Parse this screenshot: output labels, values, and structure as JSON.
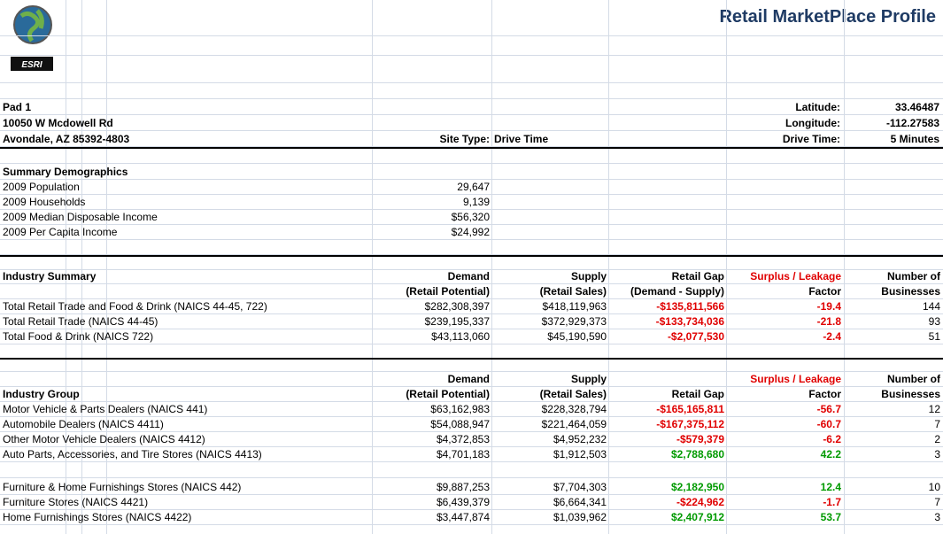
{
  "title": "Retail MarketPlace Profile",
  "logo_text": "ESRI",
  "site": {
    "name": "Pad 1",
    "address": "10050 W Mcdowell Rd",
    "city": "Avondale, AZ 85392-4803",
    "site_type_label": "Site Type:",
    "site_type": "Drive Time",
    "latitude_label": "Latitude:",
    "latitude": 33.46487,
    "longitude_label": "Longitude:",
    "longitude": -112.27583,
    "drive_time_label": "Drive Time:",
    "drive_time": "5 Minutes"
  },
  "summary_demographics": {
    "title": "Summary Demographics",
    "rows": [
      [
        "2009 Population",
        "29,647"
      ],
      [
        "2009 Households",
        "9,139"
      ],
      [
        "2009 Median Disposable Income",
        "$56,320"
      ],
      [
        "2009 Per Capita Income",
        "$24,992"
      ]
    ]
  },
  "industry_summary": {
    "title": "Industry Summary",
    "headers": [
      [
        "Demand",
        "(Retail Potential)"
      ],
      [
        "Supply",
        "(Retail Sales)"
      ],
      [
        "Retail Gap",
        "(Demand - Supply)"
      ],
      [
        "Surplus / Leakage",
        "Factor"
      ],
      [
        "Number of",
        "Businesses"
      ]
    ],
    "rows": [
      [
        "Total Retail Trade and Food & Drink (NAICS 44-45, 722)",
        "$282,308,397",
        "$418,119,963",
        "-$135,811,566",
        -19.4,
        144
      ],
      [
        "Total Retail Trade (NAICS 44-45)",
        "$239,195,337",
        "$372,929,373",
        "-$133,734,036",
        -21.8,
        93
      ],
      [
        "Total Food & Drink (NAICS 722)",
        "$43,113,060",
        "$45,190,590",
        "-$2,077,530",
        -2.4,
        51
      ]
    ]
  },
  "industry_group": {
    "title": "Industry Group",
    "headers": [
      [
        "Demand",
        "(Retail Potential)"
      ],
      [
        "Supply",
        "(Retail Sales)"
      ],
      [
        "Retail Gap"
      ],
      [
        "Surplus / Leakage",
        "Factor"
      ],
      [
        "Number of",
        "Businesses"
      ]
    ],
    "groups": [
      [
        [
          "Motor Vehicle & Parts Dealers (NAICS 441)",
          "$63,162,983",
          "$228,328,794",
          "-$165,165,811",
          -56.7,
          12
        ],
        [
          "Automobile Dealers (NAICS 4411)",
          "$54,088,947",
          "$221,464,059",
          "-$167,375,112",
          -60.7,
          7
        ],
        [
          "Other Motor Vehicle Dealers (NAICS 4412)",
          "$4,372,853",
          "$4,952,232",
          "-$579,379",
          -6.2,
          2
        ],
        [
          "Auto Parts, Accessories, and Tire Stores (NAICS 4413)",
          "$4,701,183",
          "$1,912,503",
          "$2,788,680",
          42.2,
          3
        ]
      ],
      [
        [
          "Furniture & Home Furnishings Stores (NAICS 442)",
          "$9,887,253",
          "$7,704,303",
          "$2,182,950",
          12.4,
          10
        ],
        [
          "Furniture Stores (NAICS 4421)",
          "$6,439,379",
          "$6,664,341",
          "-$224,962",
          -1.7,
          7
        ],
        [
          "Home Furnishings Stores (NAICS 4422)",
          "$3,447,874",
          "$1,039,962",
          "$2,407,912",
          53.7,
          3
        ]
      ]
    ]
  }
}
